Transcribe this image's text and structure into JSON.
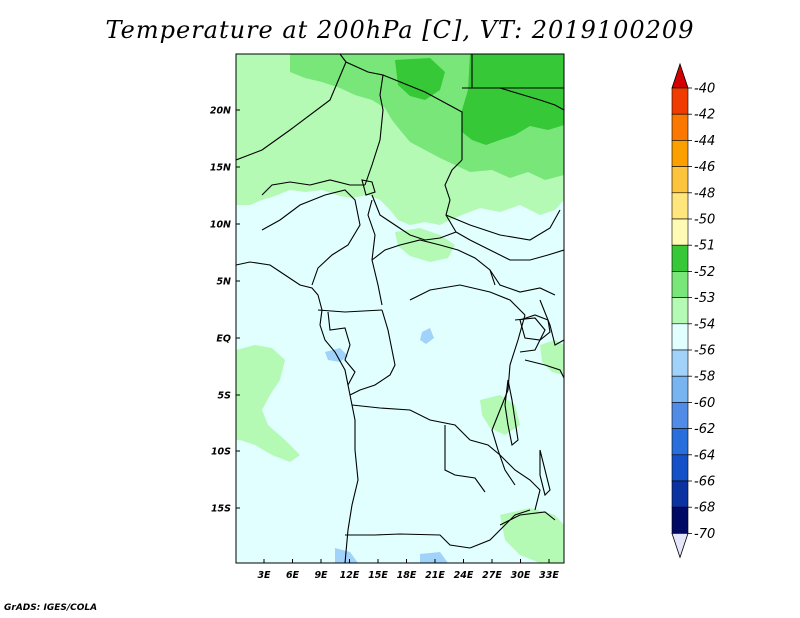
{
  "title": "Temperature at 200hPa [C], VT: 2019100209",
  "footer": "GrADS: IGES/COLA",
  "map": {
    "background_color": "#e1ffff",
    "lat_ticks": [
      "20N",
      "15N",
      "10N",
      "5N",
      "EQ",
      "5S",
      "10S",
      "15S"
    ],
    "lon_ticks": [
      "3E",
      "6E",
      "9E",
      "12E",
      "15E",
      "18E",
      "21E",
      "24E",
      "27E",
      "30E",
      "33E"
    ]
  },
  "colorbar": {
    "levels": [
      {
        "label": "-40",
        "color": "#d20000"
      },
      {
        "label": "-42",
        "color": "#f03c00"
      },
      {
        "label": "-44",
        "color": "#fa7800"
      },
      {
        "label": "-46",
        "color": "#fca000"
      },
      {
        "label": "-48",
        "color": "#fcc43c"
      },
      {
        "label": "-50",
        "color": "#ffe67c"
      },
      {
        "label": "-51",
        "color": "#fffab4"
      },
      {
        "label": "-52",
        "color": "#36c836"
      },
      {
        "label": "-53",
        "color": "#78e678"
      },
      {
        "label": "-54",
        "color": "#b4fab4"
      },
      {
        "label": "-56",
        "color": "#e1ffff"
      },
      {
        "label": "-58",
        "color": "#a0d2fa"
      },
      {
        "label": "-60",
        "color": "#78b4f0"
      },
      {
        "label": "-62",
        "color": "#508ce6"
      },
      {
        "label": "-64",
        "color": "#286edc"
      },
      {
        "label": "-66",
        "color": "#1450c8"
      },
      {
        "label": "-68",
        "color": "#0a32a0"
      },
      {
        "label": "-70",
        "color": "#000a64"
      }
    ],
    "top_cap_color": "#d20000",
    "bottom_cap_color": "#e6e6fa"
  }
}
